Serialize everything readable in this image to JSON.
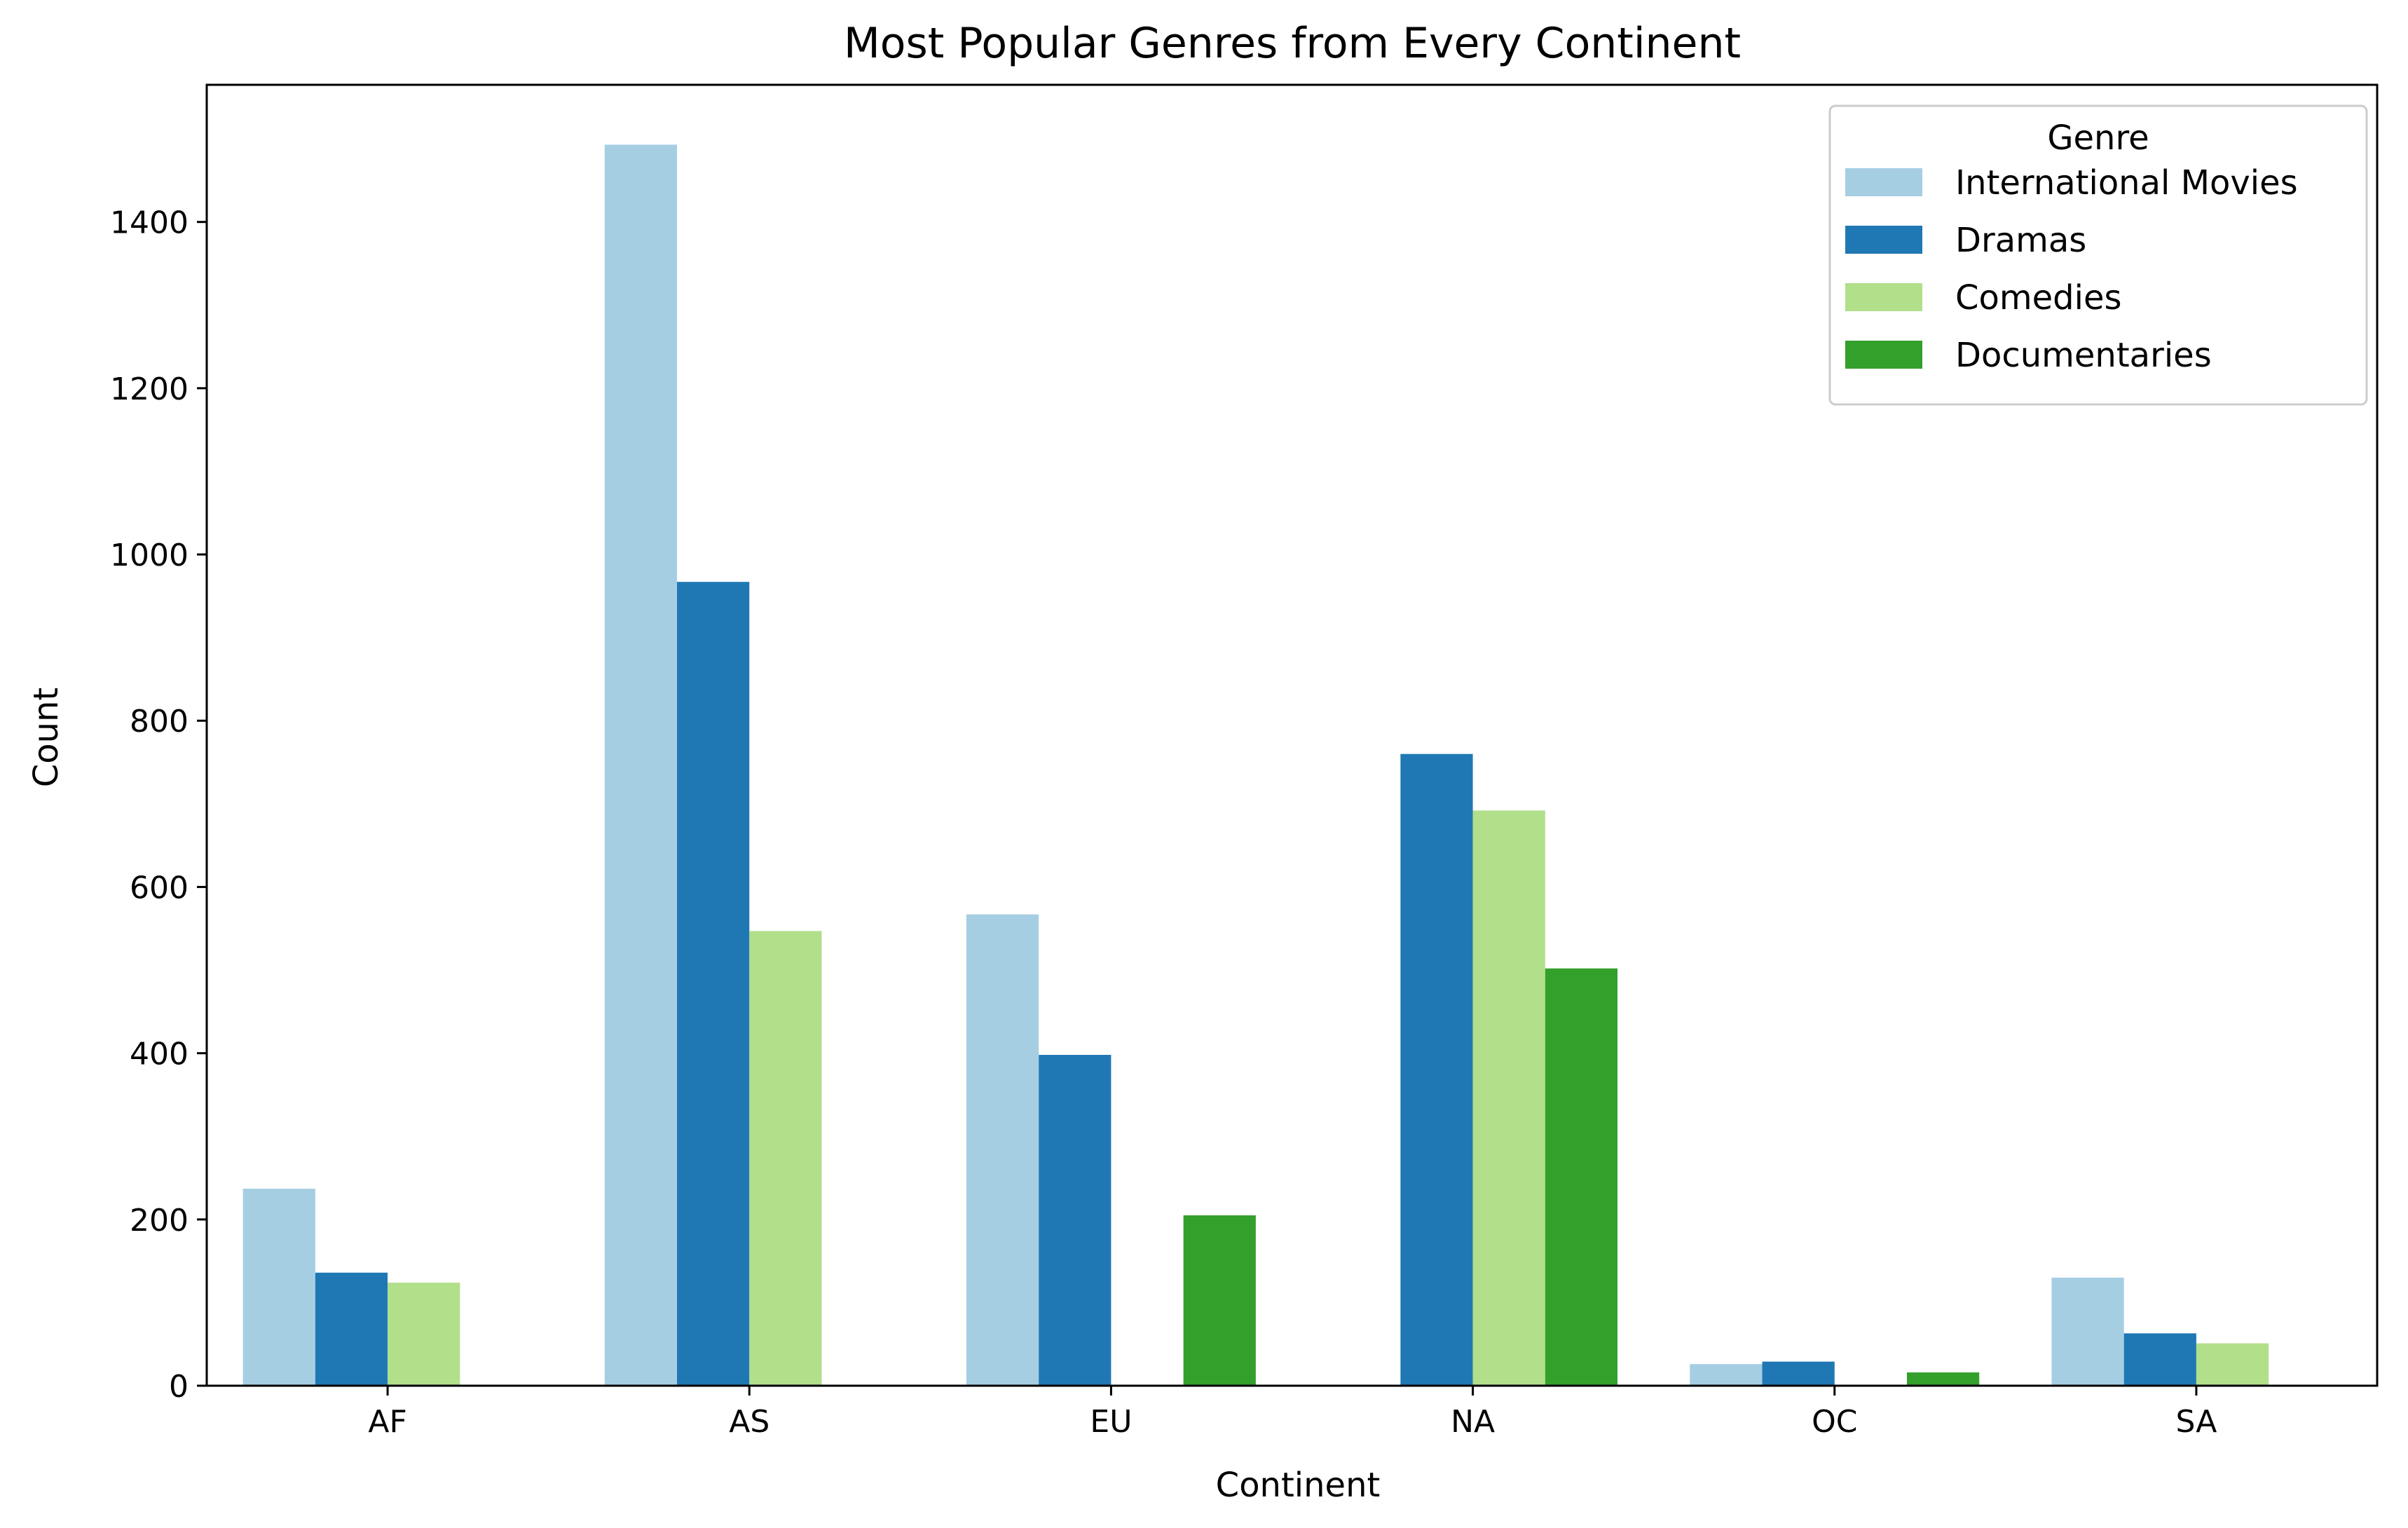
{
  "chart_data": {
    "type": "bar",
    "title": "Most Popular Genres from Every Continent",
    "xlabel": "Continent",
    "ylabel": "Count",
    "categories": [
      "AF",
      "AS",
      "EU",
      "NA",
      "OC",
      "SA"
    ],
    "ylim": [
      0,
      1565
    ],
    "yticks": [
      0,
      200,
      400,
      600,
      800,
      1000,
      1200,
      1400
    ],
    "legend": {
      "title": "Genre",
      "placement": "upper-right"
    },
    "series": [
      {
        "name": "International Movies",
        "color": "#a6cee3",
        "values": [
          237,
          1493,
          567,
          null,
          26,
          130
        ]
      },
      {
        "name": "Dramas",
        "color": "#1f78b4",
        "values": [
          136,
          967,
          398,
          760,
          29,
          63
        ]
      },
      {
        "name": "Comedies",
        "color": "#b2df8a",
        "values": [
          124,
          547,
          null,
          692,
          null,
          51
        ]
      },
      {
        "name": "Documentaries",
        "color": "#33a02c",
        "values": [
          null,
          null,
          205,
          502,
          16,
          null
        ]
      }
    ],
    "grid": false
  }
}
